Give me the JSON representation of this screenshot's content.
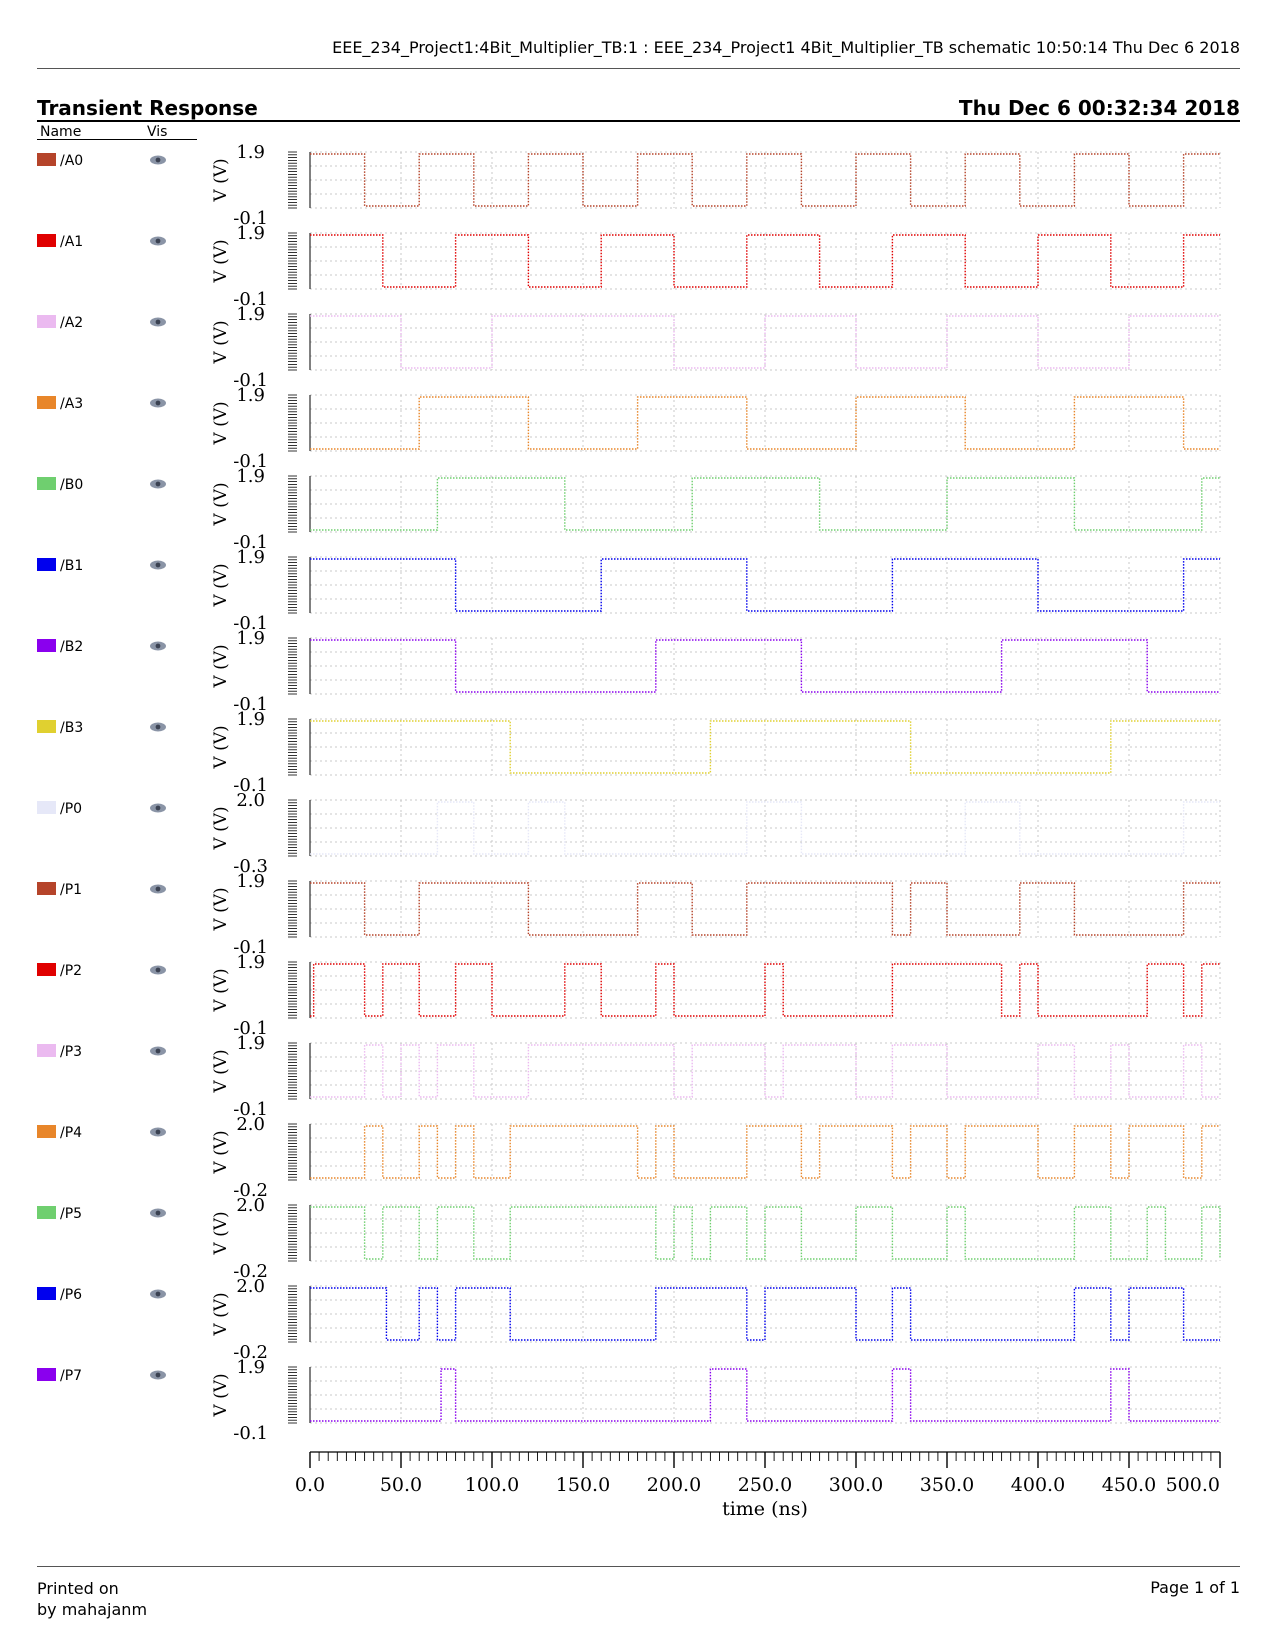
{
  "header": {
    "line": "EEE_234_Project1:4Bit_Multiplier_TB:1 : EEE_234_Project1 4Bit_Multiplier_TB schematic   10:50:14  Thu Dec 6 2018"
  },
  "title": "Transient Response",
  "print_date": "Thu Dec 6 00:32:34 2018",
  "legend": {
    "name_header": "Name",
    "vis_header": "Vis"
  },
  "footer": {
    "printed_on": "Printed on",
    "by": "by mahajanm",
    "page": "Page 1 of 1"
  },
  "chart_data": {
    "type": "line",
    "xlabel": "time (ns)",
    "ylabel": "V (V)",
    "xlim": [
      0,
      500
    ],
    "x_ticks": [
      "0.0",
      "50.0",
      "100.0",
      "150.0",
      "200.0",
      "250.0",
      "300.0",
      "350.0",
      "400.0",
      "450.0",
      "500.0"
    ],
    "grid": true,
    "series": [
      {
        "name": "/A0",
        "color": "#b5442a",
        "ymax": "1.9",
        "ymin": "-0.1",
        "transitions": [
          30,
          60,
          90,
          120,
          150,
          180,
          210,
          240,
          270,
          300,
          330,
          360,
          390,
          420,
          450,
          480
        ],
        "start": 1
      },
      {
        "name": "/A1",
        "color": "#e00000",
        "ymax": "1.9",
        "ymin": "-0.1",
        "transitions": [
          40,
          80,
          120,
          160,
          200,
          240,
          280,
          320,
          360,
          400,
          440,
          480
        ],
        "start": 1
      },
      {
        "name": "/A2",
        "color": "#ebbaf0",
        "ymax": "1.9",
        "ymin": "-0.1",
        "transitions": [
          50,
          100,
          200,
          250,
          300,
          350,
          400,
          450
        ],
        "start": 1
      },
      {
        "name": "/A3",
        "color": "#e8862a",
        "ymax": "1.9",
        "ymin": "-0.1",
        "transitions": [
          60,
          120,
          180,
          240,
          300,
          360,
          420,
          480
        ],
        "start": 0
      },
      {
        "name": "/B0",
        "color": "#6fcf6f",
        "ymax": "1.9",
        "ymin": "-0.1",
        "transitions": [
          70,
          140,
          210,
          280,
          350,
          420,
          490
        ],
        "start": 0
      },
      {
        "name": "/B1",
        "color": "#0000ee",
        "ymax": "1.9",
        "ymin": "-0.1",
        "transitions": [
          80,
          160,
          240,
          320,
          400,
          480
        ],
        "start": 1
      },
      {
        "name": "/B2",
        "color": "#8a00ee",
        "ymax": "1.9",
        "ymin": "-0.1",
        "transitions": [
          80,
          190,
          270,
          380,
          460
        ],
        "start": 1
      },
      {
        "name": "/B3",
        "color": "#e0d030",
        "ymax": "1.9",
        "ymin": "-0.1",
        "transitions": [
          110,
          220,
          330,
          440
        ],
        "start": 1
      },
      {
        "name": "/P0",
        "color": "#e6e8f8",
        "ymax": "2.0",
        "ymin": "-0.3",
        "transitions": [
          70,
          90,
          120,
          140,
          240,
          270,
          360,
          390,
          480
        ],
        "start": 0
      },
      {
        "name": "/P1",
        "color": "#b5442a",
        "ymax": "1.9",
        "ymin": "-0.1",
        "transitions": [
          30,
          60,
          120,
          180,
          210,
          240,
          320,
          330,
          350,
          390,
          420,
          480
        ],
        "start": 1
      },
      {
        "name": "/P2",
        "color": "#e00000",
        "ymax": "1.9",
        "ymin": "-0.1",
        "transitions": [
          2,
          30,
          40,
          60,
          80,
          100,
          140,
          160,
          190,
          200,
          250,
          260,
          320,
          380,
          390,
          400,
          460,
          480,
          490
        ],
        "start": 0
      },
      {
        "name": "/P3",
        "color": "#ebbaf0",
        "ymax": "1.9",
        "ymin": "-0.1",
        "transitions": [
          30,
          40,
          50,
          60,
          70,
          90,
          120,
          200,
          210,
          250,
          260,
          300,
          320,
          350,
          400,
          420,
          440,
          450,
          480,
          490
        ],
        "start": 0
      },
      {
        "name": "/P4",
        "color": "#e8862a",
        "ymax": "2.0",
        "ymin": "-0.2",
        "transitions": [
          30,
          40,
          60,
          70,
          80,
          90,
          110,
          180,
          190,
          200,
          240,
          270,
          280,
          320,
          330,
          350,
          360,
          400,
          420,
          440,
          450,
          480,
          490
        ],
        "start": 0
      },
      {
        "name": "/P5",
        "color": "#6fcf6f",
        "ymax": "2.0",
        "ymin": "-0.2",
        "transitions": [
          30,
          40,
          60,
          70,
          90,
          110,
          190,
          200,
          210,
          220,
          240,
          250,
          270,
          300,
          320,
          350,
          360,
          420,
          440,
          460,
          470,
          490,
          500
        ],
        "start": 1
      },
      {
        "name": "/P6",
        "color": "#0000ee",
        "ymax": "2.0",
        "ymin": "-0.2",
        "transitions": [
          42,
          60,
          70,
          80,
          110,
          190,
          240,
          250,
          300,
          320,
          330,
          420,
          440,
          450,
          480
        ],
        "start": 1
      },
      {
        "name": "/P7",
        "color": "#8a00ee",
        "ymax": "1.9",
        "ymin": "-0.1",
        "transitions": [
          72,
          80,
          220,
          240,
          320,
          330,
          440,
          450
        ],
        "start": 0
      }
    ]
  }
}
